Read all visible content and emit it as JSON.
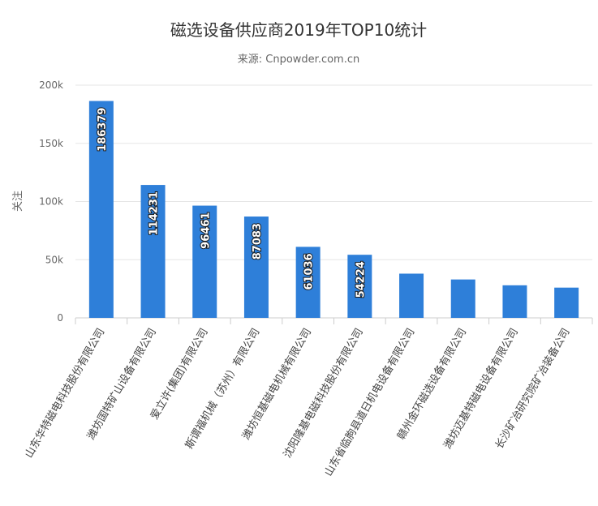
{
  "chart_data": {
    "type": "bar",
    "title": "磁选设备供应商2019年TOP10统计",
    "subtitle": "来源: Cnpowder.com.cn",
    "xlabel": "",
    "ylabel": "关注",
    "ylim": [
      0,
      200000
    ],
    "yticks": [
      0,
      50000,
      100000,
      150000,
      200000
    ],
    "ytick_labels": [
      "0",
      "50k",
      "100k",
      "150k",
      "200k"
    ],
    "grid": true,
    "bar_color": "#2e7fd9",
    "categories": [
      "山东华特磁电科技股份有限公司",
      "潍坊国特矿山设备有限公司",
      "爱立许(集团)有限公司",
      "斯谓福机械（苏州）有限公司",
      "潍坊恒基磁电机械有限公司",
      "沈阳隆基电磁科技股份有限公司",
      "山东省临朐县道日机电设备有限公司",
      "赣州金环磁选设备有限公司",
      "潍坊迈基特磁电设备有限公司",
      "长沙矿冶研究院矿冶装备公司"
    ],
    "values": [
      186379,
      114231,
      96461,
      87083,
      61036,
      54224,
      38000,
      33000,
      28000,
      26000
    ],
    "data_labels": [
      "186379",
      "114231",
      "96461",
      "87083",
      "61036",
      "54224",
      "",
      "",
      "",
      ""
    ]
  }
}
